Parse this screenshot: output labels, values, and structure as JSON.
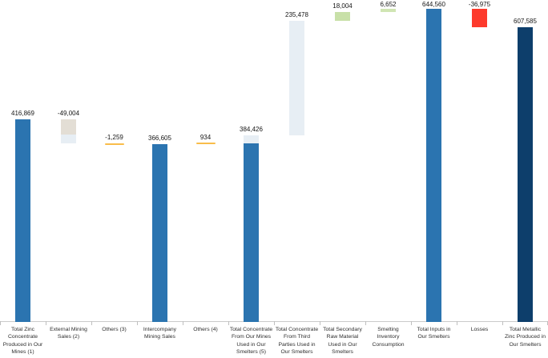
{
  "colors": {
    "blue": "#2b74b0",
    "navy": "#0d3e6b",
    "pale_blue": "#e7eef4",
    "beige": "#e3ded5",
    "green": "#c8e0a8",
    "light_green": "#d0e5b3",
    "red": "#fd3a2c",
    "orange": "#f9bd4a",
    "axis_line": "#cbcbcb",
    "tick": "#bfbfbf",
    "value_label": "#151515",
    "category_label": "#2e2e2e"
  },
  "chart_data": {
    "type": "bar",
    "subtype": "waterfall",
    "title": "",
    "xlabel": "",
    "ylabel": "",
    "value_axis_visible": false,
    "grid": false,
    "legend": "none",
    "baseline": 0,
    "approx_value_max": 650000,
    "columns": [
      {
        "label": "Total Zinc Concentrate Produced in Our Mines (1)",
        "label_lines": [
          "Total Zinc",
          "Concentrate",
          "Produced in Our",
          "Mines (1)"
        ],
        "value": 416869,
        "display": "416,869",
        "role": "total",
        "color": "blue"
      },
      {
        "label": "External Mining Sales (2)",
        "label_lines": [
          "External Mining",
          "Sales (2)"
        ],
        "value": -49004,
        "display": "-49,004",
        "role": "step",
        "segments": [
          {
            "color": "beige",
            "frac": 0.62
          },
          {
            "color": "pale_blue",
            "frac": 0.38
          }
        ]
      },
      {
        "label": "Others (3)",
        "label_lines": [
          "Others (3)"
        ],
        "value": -1259,
        "display": "-1,259",
        "role": "tiny",
        "color": "orange"
      },
      {
        "label": "Intercompany Mining Sales",
        "label_lines": [
          "Intercompany",
          "Mining Sales"
        ],
        "value": 366605,
        "display": "366,605",
        "role": "total",
        "color": "blue"
      },
      {
        "label": "Others (4)",
        "label_lines": [
          "Others (4)"
        ],
        "value": 934,
        "display": "934",
        "role": "tiny",
        "color": "orange"
      },
      {
        "label": "Total Concentrate From Our Mines Used in Our Smelters (5)",
        "label_lines": [
          "Total Concentrate",
          "From Our Mines",
          "Used in Our",
          "Smelters (5)"
        ],
        "value": 384426,
        "display": "384,426",
        "role": "total",
        "color": "blue",
        "cap_color": "pale_blue"
      },
      {
        "label": "Total Concentrate From Third Parties Used in Our Smelters",
        "label_lines": [
          "Total Concentrate",
          "From Third",
          "Parties Used in",
          "Our Smelters"
        ],
        "value": 235478,
        "display": "235,478",
        "role": "step",
        "color": "pale_blue"
      },
      {
        "label": "Total Secondary Raw Material Used in Our Smelters",
        "label_lines": [
          "Total Secondary",
          "Raw Material",
          "Used in Our",
          "Smelters"
        ],
        "value": 18004,
        "display": "18,004",
        "role": "step",
        "color": "green"
      },
      {
        "label": "Smelting Inventory Consumption",
        "label_lines": [
          "Smelting",
          "Inventory",
          "Consumption"
        ],
        "value": 6652,
        "display": "6,652",
        "role": "step",
        "color": "light_green"
      },
      {
        "label": "Total Inputs in Our Smelters",
        "label_lines": [
          "Total Inputs in",
          "Our Smelters"
        ],
        "value": 644560,
        "display": "644,560",
        "role": "total",
        "color": "blue"
      },
      {
        "label": "Losses",
        "label_lines": [
          "Losses"
        ],
        "value": -36975,
        "display": "-36,975",
        "role": "step",
        "color": "red"
      },
      {
        "label": "Total Metallic Zinc Produced in Our Smelters",
        "label_lines": [
          "Total Metallic",
          "Zinc Produced in",
          "Our Smelters"
        ],
        "value": 607585,
        "display": "607,585",
        "role": "total",
        "color": "navy"
      }
    ]
  }
}
